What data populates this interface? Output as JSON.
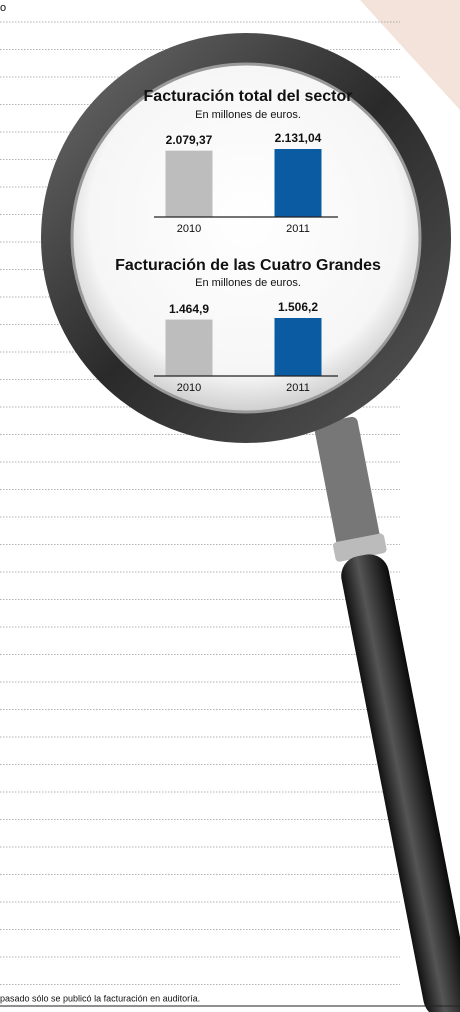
{
  "corner_text": "o",
  "footnote": "pasado sólo se publicó la facturación en auditoría.",
  "chart_data": [
    {
      "type": "bar",
      "title": "Facturación total del sector",
      "subtitle": "En millones de euros.",
      "categories": [
        "2010",
        "2011"
      ],
      "values": [
        2079.37,
        2131.04
      ],
      "value_labels": [
        "2.079,37",
        "2.131,04"
      ],
      "colors": [
        "#bdbdbd",
        "#0b5ba3"
      ]
    },
    {
      "type": "bar",
      "title": "Facturación de las Cuatro Grandes",
      "subtitle": "En millones de euros.",
      "categories": [
        "2010",
        "2011"
      ],
      "values": [
        1464.9,
        1506.2
      ],
      "value_labels": [
        "1.464,9",
        "1.506,2"
      ],
      "colors": [
        "#bdbdbd",
        "#0b5ba3"
      ]
    }
  ]
}
